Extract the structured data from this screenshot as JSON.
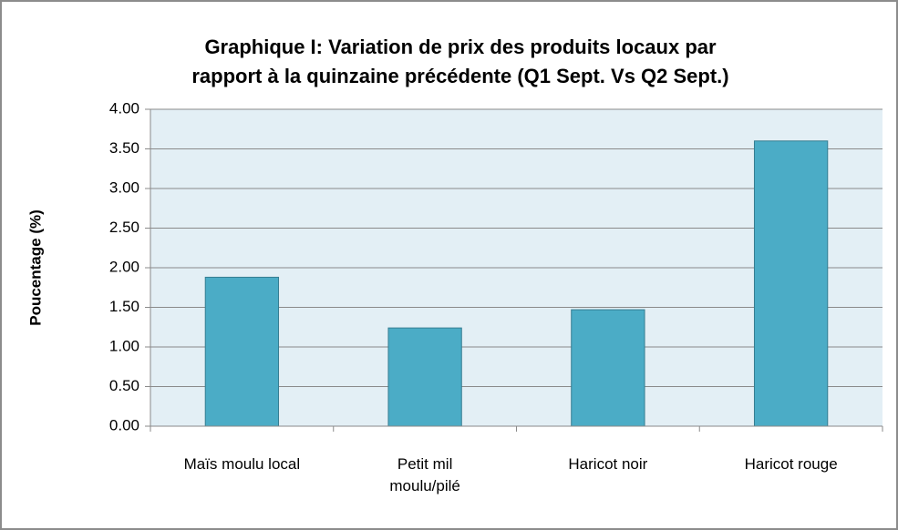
{
  "chart_data": {
    "type": "bar",
    "title": "Graphique I: Variation de prix des produits locaux par\nrapport à la quinzaine précédente (Q1 Sept. Vs Q2 Sept.)",
    "y_label": "Poucentage (%)",
    "categories": [
      "Maïs moulu local",
      "Petit mil moulu/pilé",
      "Haricot noir",
      "Haricot rouge"
    ],
    "values": [
      1.88,
      1.24,
      1.47,
      3.6
    ],
    "color": "#4bacc6",
    "ylim": [
      0,
      4
    ],
    "yticks": [
      {
        "value": 0,
        "label": "0.00"
      },
      {
        "value": 0.5,
        "label": "0.50"
      },
      {
        "value": 1,
        "label": "1.00"
      },
      {
        "value": 1.5,
        "label": "1.50"
      },
      {
        "value": 2,
        "label": "2.00"
      },
      {
        "value": 2.5,
        "label": "2.50"
      },
      {
        "value": 3,
        "label": "3.00"
      },
      {
        "value": 3.5,
        "label": "3.50"
      },
      {
        "value": 4,
        "label": "4.00"
      }
    ],
    "grid": true
  }
}
